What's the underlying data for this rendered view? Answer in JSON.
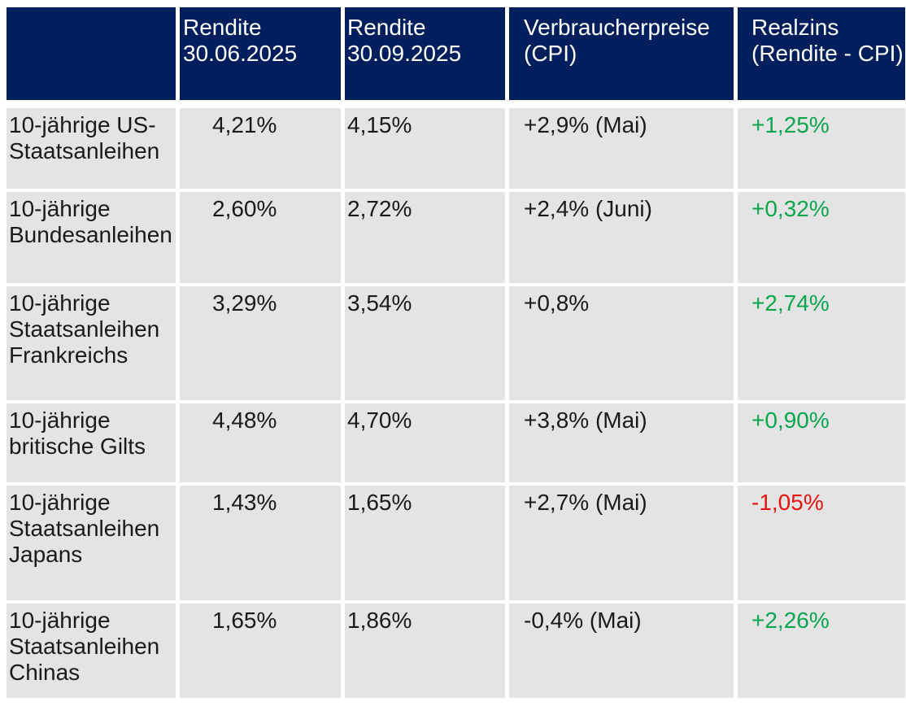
{
  "table": {
    "headers": [
      "",
      "Rendite 30.06.2025",
      "Rendite 30.09.2025",
      "Verbraucherpreise (CPI)",
      "Realzins (Rendite - CPI)"
    ],
    "rows": [
      {
        "label": "10-jährige US-Staatsanleihen",
        "rendite_30_06": "4,21%",
        "rendite_30_09": "4,15%",
        "cpi": "+2,9% (Mai)",
        "realzins": "+1,25%",
        "realzins_sentiment": "positive"
      },
      {
        "label": "10-jährige Bundesanleihen",
        "rendite_30_06": "2,60%",
        "rendite_30_09": "2,72%",
        "cpi": "+2,4% (Juni)",
        "realzins": "+0,32%",
        "realzins_sentiment": "positive"
      },
      {
        "label": "10-jährige Staatsanleihen Frankreichs",
        "rendite_30_06": "3,29%",
        "rendite_30_09": "3,54%",
        "cpi": "+0,8%",
        "realzins": "+2,74%",
        "realzins_sentiment": "positive"
      },
      {
        "label": "10-jährige britische Gilts",
        "rendite_30_06": "4,48%",
        "rendite_30_09": "4,70%",
        "cpi": "+3,8% (Mai)",
        "realzins": "+0,90%",
        "realzins_sentiment": "positive"
      },
      {
        "label": "10-jährige Staatsanleihen Japans",
        "rendite_30_06": "1,43%",
        "rendite_30_09": "1,65%",
        "cpi": "+2,7% (Mai)",
        "realzins": "-1,05%",
        "realzins_sentiment": "negative"
      },
      {
        "label": "10-jährige Staatsanleihen Chinas",
        "rendite_30_06": "1,65%",
        "rendite_30_09": "1,86%",
        "cpi": "-0,4% (Mai)",
        "realzins": "+2,26%",
        "realzins_sentiment": "positive"
      }
    ]
  },
  "colors": {
    "header_bg": "#011f5c",
    "header_text": "#ffffff",
    "row_bg": "#e4e4e4",
    "text": "#1a1a1a",
    "positive": "#0aa64e",
    "negative": "#e51410"
  }
}
